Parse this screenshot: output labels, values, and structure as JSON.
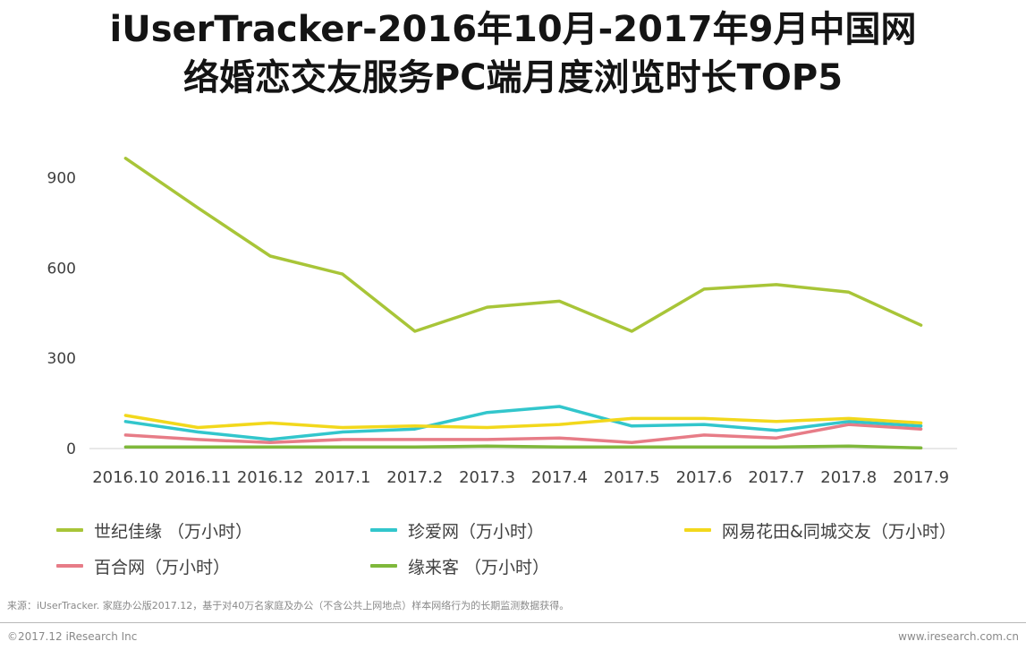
{
  "chart_data": {
    "type": "line",
    "title_lines": [
      "iUserTracker-2016年10月-2017年9月中国网",
      "络婚恋交友服务PC端月度浏览时长TOP5"
    ],
    "categories": [
      "2016.10",
      "2016.11",
      "2016.12",
      "2017.1",
      "2017.2",
      "2017.3",
      "2017.4",
      "2017.5",
      "2017.6",
      "2017.7",
      "2017.8",
      "2017.9"
    ],
    "yticks": [
      0,
      300,
      600,
      900
    ],
    "ylim": [
      0,
      1000
    ],
    "grid": false,
    "legend_position": "bottom",
    "series": [
      {
        "name": "世纪佳缘 （万小时）",
        "color": "#a8c538",
        "values": [
          965,
          800,
          640,
          580,
          390,
          470,
          490,
          390,
          530,
          545,
          520,
          410
        ]
      },
      {
        "name": "珍爱网（万小时）",
        "color": "#32c6cc",
        "values": [
          90,
          55,
          30,
          55,
          65,
          120,
          140,
          75,
          80,
          60,
          90,
          75
        ]
      },
      {
        "name": "网易花田&同城交友（万小时）",
        "color": "#f2d81c",
        "values": [
          110,
          70,
          85,
          70,
          75,
          70,
          80,
          100,
          100,
          90,
          100,
          85
        ]
      },
      {
        "name": "百合网（万小时）",
        "color": "#e77c87",
        "values": [
          45,
          30,
          20,
          30,
          30,
          30,
          35,
          20,
          45,
          35,
          80,
          65
        ]
      },
      {
        "name": "缘来客 （万小时）",
        "color": "#7fb83b",
        "values": [
          5,
          5,
          5,
          5,
          5,
          8,
          5,
          5,
          5,
          5,
          8,
          2
        ]
      }
    ]
  },
  "footer": {
    "source": "来源：iUserTracker. 家庭办公版2017.12，基于对40万名家庭及办公（不含公共上网地点）样本网络行为的长期监测数据获得。",
    "copyright": "©2017.12 iResearch Inc",
    "site": "www.iresearch.com.cn"
  }
}
